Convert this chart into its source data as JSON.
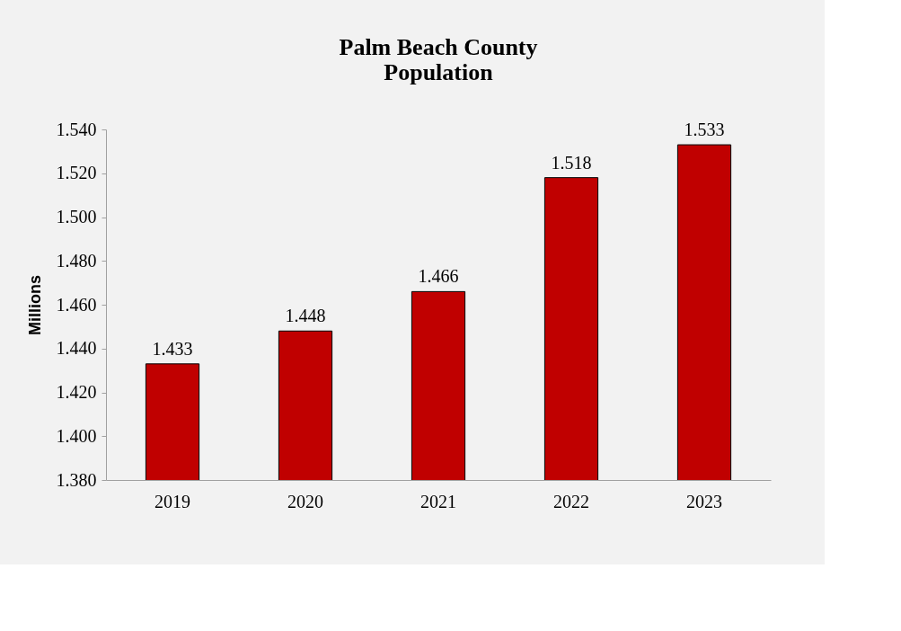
{
  "chart_data": {
    "type": "bar",
    "title": "Palm Beach County\nPopulation",
    "ylabel": "Millions",
    "categories": [
      "2019",
      "2020",
      "2021",
      "2022",
      "2023"
    ],
    "values": [
      1.433,
      1.448,
      1.466,
      1.518,
      1.533
    ],
    "color": "#c00000",
    "ylim": [
      1.38,
      1.54
    ],
    "yticks": [
      {
        "value": 1.38,
        "label": "1.380"
      },
      {
        "value": 1.4,
        "label": "1.400"
      },
      {
        "value": 1.42,
        "label": "1.420"
      },
      {
        "value": 1.44,
        "label": "1.440"
      },
      {
        "value": 1.46,
        "label": "1.460"
      },
      {
        "value": 1.48,
        "label": "1.480"
      },
      {
        "value": 1.5,
        "label": "1.500"
      },
      {
        "value": 1.52,
        "label": "1.520"
      },
      {
        "value": 1.54,
        "label": "1.540"
      }
    ],
    "data_labels": true,
    "grid": false
  }
}
